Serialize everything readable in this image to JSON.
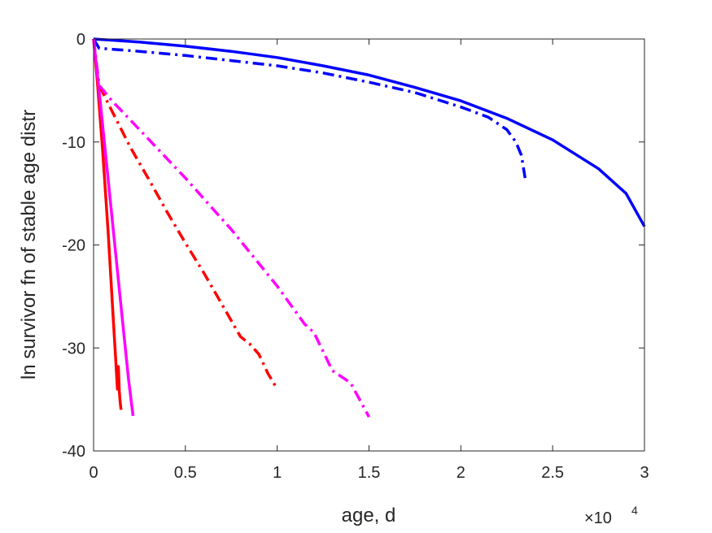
{
  "chart_data": {
    "type": "line",
    "title": "",
    "xlabel": "age, d",
    "ylabel": "ln survivor fn of stable age distr",
    "x_exponent_label": "×10",
    "x_exponent_power": "4",
    "xlim": [
      0,
      30000
    ],
    "ylim": [
      -40,
      0
    ],
    "xticks": [
      0,
      5000,
      10000,
      15000,
      20000,
      25000,
      30000
    ],
    "xtick_labels": [
      "0",
      "0.5",
      "1",
      "1.5",
      "2",
      "2.5",
      "3"
    ],
    "yticks": [
      0,
      -10,
      -20,
      -30,
      -40
    ],
    "ytick_labels": [
      "0",
      "-10",
      "-20",
      "-30",
      "-40"
    ],
    "grid": false,
    "series": [
      {
        "color": "#0000ff",
        "style": "solid",
        "x": [
          0,
          2500,
          5000,
          7500,
          10000,
          12500,
          15000,
          17500,
          20000,
          22500,
          25000,
          27500,
          29000,
          30000
        ],
        "y": [
          0,
          -0.3,
          -0.7,
          -1.2,
          -1.8,
          -2.6,
          -3.5,
          -4.7,
          -6.0,
          -7.7,
          -9.8,
          -12.6,
          -15.0,
          -18.2
        ]
      },
      {
        "color": "#0000ff",
        "style": "dashdot",
        "x": [
          0,
          300,
          2500,
          5000,
          7500,
          10000,
          12500,
          15000,
          17500,
          20000,
          21500,
          22500,
          23000,
          23300,
          23500
        ],
        "y": [
          0,
          -0.9,
          -1.2,
          -1.6,
          -2.1,
          -2.6,
          -3.3,
          -4.2,
          -5.2,
          -6.6,
          -7.6,
          -8.8,
          -10.0,
          -11.3,
          -13.5
        ]
      },
      {
        "color": "#ff0000",
        "style": "solid",
        "x": [
          0,
          200,
          500,
          800,
          1100,
          1200,
          1300,
          1350,
          1400,
          1450,
          1500
        ],
        "y": [
          0,
          -4,
          -11,
          -19,
          -28,
          -31,
          -34,
          -31.8,
          -34.2,
          -35.3,
          -36
        ]
      },
      {
        "color": "#ff00ff",
        "style": "solid",
        "x": [
          0,
          300,
          700,
          1100,
          1500,
          1900,
          2150
        ],
        "y": [
          0,
          -5,
          -12,
          -19,
          -26,
          -33,
          -36.6
        ]
      },
      {
        "color": "#ff0000",
        "style": "dashdot",
        "x": [
          0,
          300,
          1000,
          2000,
          3000,
          4000,
          5000,
          6000,
          7000,
          8000,
          8500,
          9000,
          9500,
          10000
        ],
        "y": [
          0,
          -4.5,
          -7,
          -10.5,
          -13.6,
          -16.8,
          -19.8,
          -22.7,
          -25.8,
          -28.9,
          -29.6,
          -30.6,
          -32.5,
          -34
        ]
      },
      {
        "color": "#ff00ff",
        "style": "dashdot",
        "x": [
          0,
          300,
          1000,
          2500,
          5000,
          7500,
          10000,
          11500,
          12000,
          13000,
          14000,
          15000
        ],
        "y": [
          0,
          -4.5,
          -6,
          -8.8,
          -13.5,
          -18.5,
          -24,
          -27.7,
          -28.5,
          -32.2,
          -33.4,
          -36.7
        ]
      }
    ]
  }
}
